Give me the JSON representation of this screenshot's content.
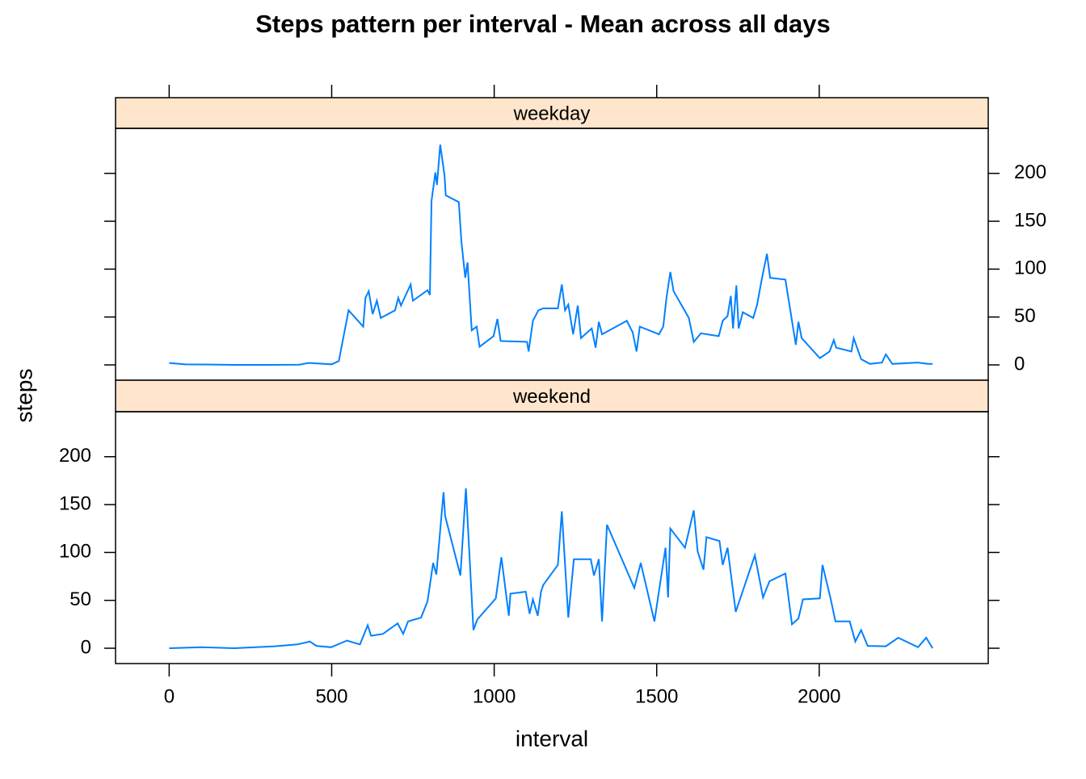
{
  "chart_data": {
    "type": "line",
    "title": "Steps pattern per interval - Mean across all days",
    "xlabel": "interval",
    "ylabel": "steps",
    "color": "#0080ff",
    "strip_color": "#ffe5cc",
    "xlim": [
      -165,
      2520
    ],
    "ylim": [
      -16,
      247
    ],
    "xticks": [
      0,
      500,
      1000,
      1500,
      2000
    ],
    "yticks": [
      0,
      50,
      100,
      150,
      200
    ],
    "panels": [
      {
        "name": "weekday",
        "x": [
          0,
          50,
          100,
          200,
          300,
          400,
          430,
          500,
          522,
          552,
          597,
          604,
          614,
          626,
          639,
          651,
          695,
          705,
          713,
          743,
          750,
          795,
          802,
          807,
          819,
          824,
          834,
          847,
          851,
          891,
          899,
          911,
          918,
          931,
          946,
          955,
          998,
          1010,
          1020,
          1101,
          1106,
          1119,
          1136,
          1151,
          1196,
          1208,
          1218,
          1228,
          1243,
          1257,
          1267,
          1300,
          1312,
          1322,
          1332,
          1408,
          1426,
          1438,
          1448,
          1507,
          1520,
          1530,
          1542,
          1552,
          1599,
          1614,
          1636,
          1691,
          1703,
          1718,
          1728,
          1735,
          1745,
          1752,
          1765,
          1797,
          1809,
          1822,
          1839,
          1849,
          1896,
          1913,
          1928,
          1936,
          1946,
          2002,
          2032,
          2045,
          2052,
          2099,
          2106,
          2129,
          2156,
          2193,
          2205,
          2225,
          2304,
          2334,
          2349
        ],
        "values": [
          2,
          0.5,
          0.4,
          0,
          0,
          0.3,
          2,
          0.6,
          4,
          57,
          40,
          70,
          77,
          53,
          67,
          49,
          57,
          70,
          62,
          84,
          67,
          78,
          73,
          171,
          201,
          188,
          230,
          198,
          177,
          170,
          129,
          91,
          107,
          36,
          40,
          19,
          30,
          48,
          25,
          24,
          14,
          46,
          57,
          59,
          59,
          84,
          57,
          63,
          32,
          62,
          28,
          38,
          18,
          45,
          32,
          46,
          34,
          14,
          40,
          32,
          40,
          70,
          97,
          77,
          49,
          24,
          33,
          30,
          46,
          51,
          72,
          38,
          83,
          38,
          55,
          49,
          63,
          87,
          116,
          91,
          89,
          53,
          21,
          45,
          28,
          7,
          14,
          26,
          18,
          14,
          28,
          6,
          1,
          2.5,
          11,
          1,
          2.5,
          1,
          1
        ]
      },
      {
        "name": "weekend",
        "x": [
          0,
          100,
          200,
          324,
          394,
          433,
          453,
          498,
          547,
          587,
          611,
          621,
          658,
          703,
          720,
          735,
          775,
          795,
          812,
          822,
          844,
          849,
          896,
          913,
          936,
          948,
          1005,
          1022,
          1045,
          1050,
          1097,
          1109,
          1119,
          1134,
          1144,
          1151,
          1196,
          1208,
          1228,
          1245,
          1297,
          1307,
          1322,
          1332,
          1347,
          1431,
          1451,
          1493,
          1527,
          1535,
          1542,
          1587,
          1614,
          1626,
          1644,
          1653,
          1693,
          1703,
          1718,
          1743,
          1802,
          1827,
          1847,
          1896,
          1916,
          1936,
          1950,
          2002,
          2010,
          2035,
          2050,
          2094,
          2111,
          2129,
          2149,
          2205,
          2243,
          2304,
          2329,
          2349
        ],
        "values": [
          0,
          1,
          0,
          2,
          4,
          7,
          2.5,
          1,
          8,
          4,
          24,
          13,
          15,
          26,
          15,
          28,
          32,
          49,
          89,
          77,
          163,
          138,
          76,
          167,
          19,
          30,
          52,
          95,
          34,
          57,
          59,
          36,
          51,
          34,
          59,
          66,
          87,
          143,
          32,
          93,
          93,
          76,
          93,
          28,
          129,
          63,
          89,
          28,
          105,
          53,
          125,
          105,
          144,
          101,
          82,
          116,
          112,
          87,
          105,
          38,
          97,
          53,
          70,
          78,
          25,
          31,
          51,
          52,
          87,
          52,
          28,
          28,
          7,
          19,
          2.5,
          2,
          11,
          1,
          11,
          0
        ]
      }
    ]
  }
}
